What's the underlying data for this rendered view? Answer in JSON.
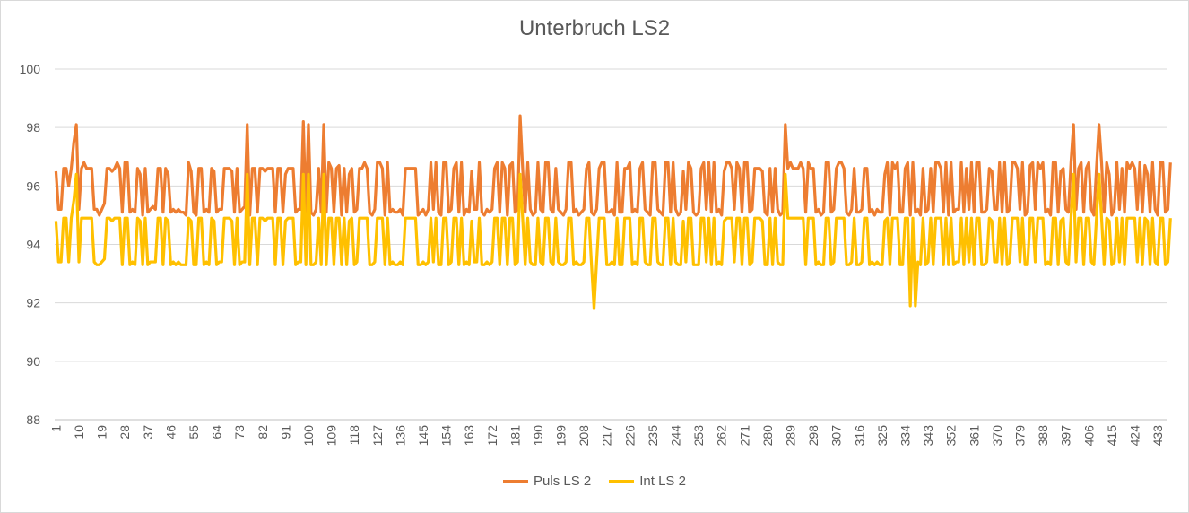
{
  "chart_data": {
    "type": "line",
    "title": "Unterbruch LS2",
    "xlabel": "",
    "ylabel": "",
    "ylim": [
      88,
      100
    ],
    "yticks": [
      88,
      90,
      92,
      94,
      96,
      98,
      100
    ],
    "x_range": [
      1,
      436
    ],
    "xtick_start": 1,
    "xtick_step": 9,
    "grid": true,
    "legend": "bottom",
    "series": [
      {
        "name": "Puls LS 2",
        "color": "#ED7D31",
        "values": [
          96.5,
          95.2,
          95.2,
          96.6,
          96.6,
          96.0,
          96.6,
          97.5,
          98.1,
          95.2,
          96.6,
          96.8,
          96.6,
          96.6,
          96.6,
          95.2,
          95.2,
          95.0,
          95.2,
          95.4,
          96.6,
          96.6,
          96.5,
          96.6,
          96.8,
          96.6,
          95.1,
          96.8,
          96.8,
          95.1,
          95.2,
          95.1,
          96.6,
          96.4,
          95.0,
          96.6,
          95.1,
          95.2,
          95.3,
          95.2,
          96.6,
          96.6,
          95.1,
          96.6,
          96.4,
          95.1,
          95.2,
          95.1,
          95.2,
          95.1,
          95.1,
          95.0,
          96.8,
          96.5,
          95.1,
          95.0,
          96.6,
          96.6,
          95.1,
          95.2,
          95.1,
          96.6,
          96.5,
          95.1,
          95.2,
          95.2,
          96.6,
          96.6,
          96.6,
          96.5,
          95.1,
          96.6,
          95.1,
          95.2,
          95.3,
          98.1,
          95.0,
          96.6,
          96.6,
          95.1,
          96.6,
          96.6,
          96.5,
          96.6,
          96.6,
          96.6,
          95.1,
          96.6,
          96.6,
          95.1,
          96.4,
          96.6,
          96.6,
          96.6,
          95.1,
          95.2,
          95.2,
          98.2,
          95.0,
          98.1,
          95.1,
          95.0,
          95.2,
          96.6,
          95.1,
          98.1,
          95.1,
          96.8,
          96.6,
          95.1,
          96.6,
          96.7,
          95.0,
          96.6,
          95.1,
          96.4,
          96.6,
          95.1,
          95.2,
          96.6,
          96.6,
          96.8,
          96.6,
          95.1,
          95.0,
          95.2,
          96.8,
          96.8,
          96.6,
          95.0,
          96.8,
          95.1,
          95.2,
          95.1,
          95.1,
          95.2,
          95.0,
          96.6,
          96.6,
          96.6,
          96.6,
          96.6,
          95.0,
          95.1,
          95.2,
          95.0,
          95.2,
          96.8,
          95.2,
          96.8,
          95.1,
          95.0,
          96.8,
          96.8,
          95.1,
          95.2,
          96.6,
          96.8,
          95.1,
          96.8,
          95.0,
          95.2,
          95.1,
          96.5,
          95.2,
          95.2,
          96.8,
          95.1,
          95.0,
          95.2,
          95.1,
          95.2,
          96.6,
          96.8,
          95.1,
          96.8,
          96.6,
          95.0,
          96.7,
          96.8,
          95.1,
          95.2,
          98.4,
          96.6,
          95.1,
          96.8,
          95.2,
          95.0,
          95.1,
          96.8,
          95.2,
          95.1,
          96.8,
          96.8,
          95.2,
          95.1,
          96.6,
          95.2,
          95.1,
          95.0,
          95.2,
          96.8,
          96.8,
          95.1,
          95.2,
          95.0,
          95.1,
          95.2,
          96.6,
          96.8,
          95.1,
          95.0,
          95.2,
          96.6,
          96.8,
          96.8,
          95.1,
          95.1,
          95.2,
          95.0,
          96.8,
          95.1,
          95.1,
          96.6,
          96.6,
          96.8,
          95.1,
          95.2,
          95.1,
          96.6,
          96.8,
          95.2,
          95.1,
          95.0,
          96.8,
          96.8,
          95.2,
          95.1,
          95.0,
          96.8,
          96.8,
          95.1,
          96.8,
          95.2,
          95.0,
          95.1,
          96.5,
          95.2,
          96.8,
          96.6,
          95.1,
          95.0,
          95.1,
          96.6,
          96.8,
          95.2,
          96.8,
          95.1,
          96.8,
          95.1,
          95.2,
          95.0,
          96.5,
          96.8,
          96.8,
          96.6,
          95.2,
          96.8,
          96.6,
          95.1,
          96.8,
          96.8,
          95.1,
          95.2,
          96.6,
          96.6,
          96.6,
          96.5,
          95.1,
          95.0,
          96.6,
          95.1,
          96.6,
          95.2,
          95.0,
          95.1,
          98.1,
          96.6,
          96.8,
          96.6,
          96.6,
          96.6,
          96.8,
          96.6,
          95.1,
          96.8,
          96.6,
          96.6,
          95.1,
          95.2,
          95.0,
          95.1,
          96.8,
          96.8,
          95.1,
          95.2,
          96.6,
          96.8,
          96.8,
          96.6,
          95.1,
          95.0,
          95.2,
          96.6,
          95.1,
          95.1,
          95.2,
          96.6,
          96.6,
          95.1,
          95.2,
          95.0,
          95.2,
          95.1,
          95.1,
          96.4,
          96.8,
          95.0,
          96.8,
          96.6,
          96.8,
          95.1,
          95.1,
          96.6,
          96.8,
          95.0,
          96.8,
          95.1,
          95.2,
          95.0,
          96.6,
          95.1,
          95.2,
          96.6,
          95.1,
          96.8,
          96.8,
          96.6,
          95.1,
          96.8,
          95.0,
          96.8,
          95.1,
          95.2,
          95.2,
          96.8,
          95.1,
          96.6,
          95.2,
          96.8,
          95.1,
          96.8,
          96.8,
          95.1,
          95.1,
          95.2,
          96.6,
          96.5,
          95.2,
          95.2,
          96.8,
          95.1,
          96.8,
          95.1,
          95.2,
          96.8,
          96.8,
          96.6,
          95.2,
          96.8,
          95.0,
          95.1,
          96.7,
          96.8,
          95.2,
          96.8,
          96.6,
          96.8,
          95.1,
          95.2,
          95.0,
          96.8,
          96.8,
          95.1,
          96.5,
          96.6,
          95.2,
          95.1,
          96.8,
          98.1,
          95.2,
          96.6,
          96.8,
          95.1,
          96.6,
          96.8,
          95.2,
          95.0,
          96.6,
          98.1,
          96.8,
          95.1,
          96.8,
          96.4,
          95.0,
          95.2,
          96.8,
          95.2,
          96.6,
          95.1,
          96.8,
          96.6,
          96.8,
          96.6,
          95.2,
          96.8,
          95.1,
          96.7,
          96.4,
          95.1,
          96.8,
          95.2,
          95.0,
          96.8,
          96.8,
          95.1,
          95.2,
          96.8
        ]
      },
      {
        "name": "Int LS 2",
        "color": "#FFC000",
        "values": [
          94.8,
          93.4,
          93.4,
          94.9,
          94.9,
          93.4,
          94.9,
          95.5,
          96.4,
          93.4,
          94.9,
          94.9,
          94.9,
          94.9,
          94.9,
          93.4,
          93.3,
          93.3,
          93.4,
          93.5,
          94.9,
          94.9,
          94.8,
          94.9,
          94.9,
          94.9,
          93.3,
          94.9,
          94.9,
          93.3,
          93.4,
          93.3,
          94.9,
          94.8,
          93.3,
          94.9,
          93.3,
          93.4,
          93.4,
          93.4,
          94.9,
          94.9,
          93.3,
          94.9,
          94.8,
          93.3,
          93.4,
          93.3,
          93.4,
          93.3,
          93.3,
          93.3,
          94.9,
          94.8,
          93.3,
          93.3,
          94.9,
          94.9,
          93.3,
          93.4,
          93.3,
          94.9,
          94.8,
          93.3,
          93.4,
          93.4,
          94.9,
          94.9,
          94.9,
          94.8,
          93.3,
          94.9,
          93.3,
          93.4,
          93.4,
          96.4,
          93.3,
          94.9,
          94.9,
          93.3,
          94.9,
          94.9,
          94.8,
          94.9,
          94.9,
          94.9,
          93.3,
          94.9,
          94.9,
          93.3,
          94.8,
          94.9,
          94.9,
          94.9,
          93.3,
          93.4,
          93.4,
          96.4,
          93.3,
          96.4,
          93.3,
          93.3,
          93.4,
          94.9,
          93.3,
          96.4,
          93.3,
          94.9,
          94.9,
          93.3,
          94.9,
          94.9,
          93.3,
          94.9,
          93.3,
          94.8,
          94.9,
          93.3,
          93.4,
          94.9,
          94.9,
          94.9,
          94.9,
          93.3,
          93.3,
          93.4,
          94.9,
          94.9,
          94.9,
          93.3,
          94.9,
          93.3,
          93.4,
          93.3,
          93.3,
          93.4,
          93.3,
          94.9,
          94.9,
          94.9,
          94.9,
          94.9,
          93.3,
          93.3,
          93.4,
          93.3,
          93.4,
          94.9,
          93.4,
          94.9,
          93.3,
          93.3,
          94.9,
          94.9,
          93.3,
          93.4,
          94.9,
          94.9,
          93.3,
          94.9,
          93.3,
          93.4,
          93.3,
          94.8,
          93.4,
          93.4,
          94.9,
          93.3,
          93.3,
          93.4,
          93.3,
          93.4,
          94.9,
          94.9,
          93.3,
          94.9,
          94.9,
          93.3,
          94.9,
          94.9,
          93.3,
          93.4,
          96.4,
          94.9,
          93.3,
          94.9,
          93.4,
          93.3,
          93.3,
          94.9,
          93.4,
          93.3,
          94.9,
          94.9,
          93.4,
          93.3,
          94.9,
          93.4,
          93.3,
          93.3,
          93.4,
          94.9,
          94.9,
          93.3,
          93.4,
          93.3,
          93.3,
          93.4,
          94.9,
          94.9,
          93.3,
          91.8,
          93.4,
          94.9,
          94.9,
          94.9,
          93.3,
          93.3,
          93.4,
          93.3,
          94.9,
          93.3,
          93.3,
          94.9,
          94.9,
          94.9,
          93.3,
          93.4,
          93.3,
          94.9,
          94.9,
          93.4,
          93.3,
          93.3,
          94.9,
          94.9,
          93.4,
          93.3,
          93.3,
          94.9,
          94.9,
          93.3,
          94.9,
          93.4,
          93.3,
          93.3,
          94.8,
          93.4,
          94.9,
          94.9,
          93.3,
          93.3,
          93.3,
          94.9,
          94.9,
          93.4,
          94.9,
          93.3,
          94.9,
          93.3,
          93.4,
          93.3,
          94.8,
          94.9,
          94.9,
          94.9,
          93.4,
          94.9,
          94.9,
          93.3,
          94.9,
          94.9,
          93.3,
          93.4,
          94.9,
          94.9,
          94.9,
          94.8,
          93.3,
          93.3,
          94.9,
          93.3,
          94.9,
          93.4,
          93.3,
          93.3,
          96.4,
          94.9,
          94.9,
          94.9,
          94.9,
          94.9,
          94.9,
          94.9,
          93.3,
          94.9,
          94.9,
          94.9,
          93.3,
          93.4,
          93.3,
          93.3,
          94.9,
          94.9,
          93.3,
          93.4,
          94.9,
          94.9,
          94.9,
          94.9,
          93.3,
          93.3,
          93.4,
          94.9,
          93.3,
          93.3,
          93.4,
          94.9,
          94.9,
          93.3,
          93.4,
          93.3,
          93.4,
          93.3,
          93.3,
          94.8,
          94.9,
          93.3,
          94.9,
          94.9,
          94.9,
          93.3,
          93.3,
          94.9,
          94.9,
          91.9,
          94.9,
          91.9,
          93.4,
          93.3,
          94.9,
          93.3,
          93.4,
          94.9,
          93.3,
          94.9,
          94.9,
          94.9,
          93.3,
          94.9,
          93.3,
          94.9,
          93.3,
          93.4,
          93.4,
          94.9,
          93.3,
          94.9,
          93.4,
          94.9,
          93.3,
          94.9,
          94.9,
          93.3,
          93.3,
          93.4,
          94.9,
          94.8,
          93.4,
          93.4,
          94.9,
          93.3,
          94.9,
          93.3,
          93.4,
          94.9,
          94.9,
          94.9,
          93.4,
          94.9,
          93.3,
          93.3,
          94.9,
          94.9,
          93.4,
          94.9,
          94.9,
          94.9,
          93.3,
          93.4,
          93.3,
          94.9,
          94.9,
          93.3,
          94.8,
          94.9,
          93.4,
          93.3,
          94.9,
          96.4,
          93.4,
          94.9,
          94.9,
          93.3,
          94.9,
          94.9,
          93.4,
          93.3,
          94.9,
          96.4,
          94.9,
          93.3,
          94.9,
          94.8,
          93.3,
          93.4,
          94.9,
          93.4,
          94.9,
          93.3,
          94.9,
          94.9,
          94.9,
          94.9,
          93.4,
          94.9,
          93.3,
          94.9,
          94.8,
          93.3,
          94.9,
          93.4,
          93.3,
          94.9,
          94.9,
          93.3,
          93.4,
          94.9
        ]
      }
    ]
  }
}
